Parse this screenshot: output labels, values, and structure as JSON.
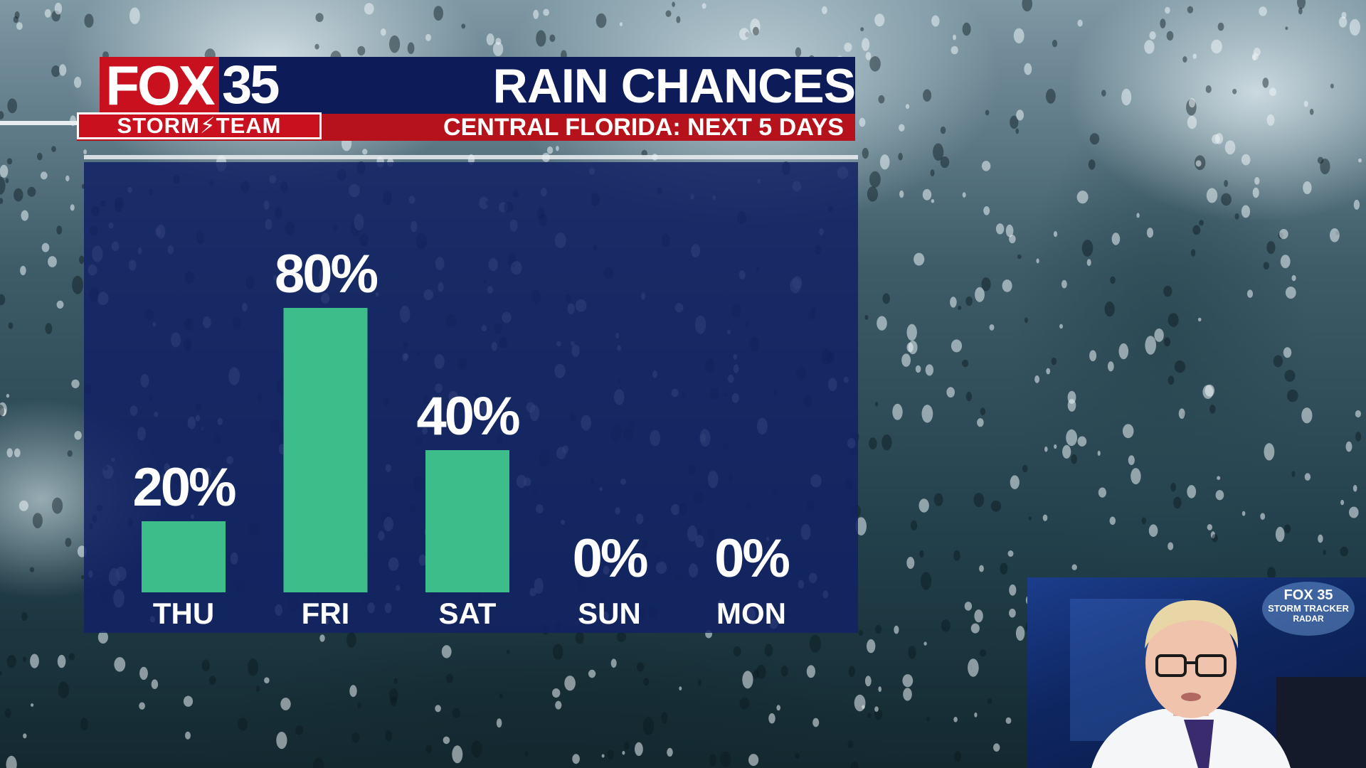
{
  "header": {
    "logo_network": "FOX",
    "logo_number": "35",
    "logo_team": "STORM⚡TEAM",
    "title": "RAIN CHANCES",
    "subtitle": "CENTRAL FLORIDA: NEXT 5 DAYS"
  },
  "chart_data": {
    "type": "bar",
    "title": "RAIN CHANCES",
    "subtitle": "CENTRAL FLORIDA: NEXT 5 DAYS",
    "categories": [
      "THU",
      "FRI",
      "SAT",
      "SUN",
      "MON"
    ],
    "values": [
      20,
      80,
      40,
      0,
      0
    ],
    "value_labels": [
      "20%",
      "80%",
      "40%",
      "0%",
      "0%"
    ],
    "unit": "%",
    "ylim": [
      0,
      100
    ],
    "grid": false,
    "legend": "none",
    "bar_color": "#3dbd8a"
  },
  "inset": {
    "logo_line1": "FOX 35",
    "logo_line2": "STORM TRACKER",
    "logo_line3": "RADAR"
  },
  "colors": {
    "navy": "#0d1b58",
    "red": "#b5121b",
    "bar": "#3dbd8a"
  }
}
